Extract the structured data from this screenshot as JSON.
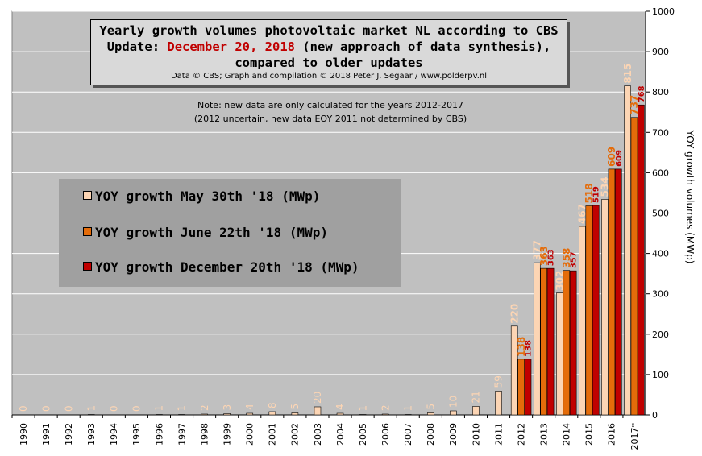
{
  "chart_data": {
    "type": "bar",
    "title_line1": "Yearly growth volumes photovoltaic market NL according to CBS",
    "title_line2_prefix": "Update: ",
    "title_line2_date": "December 20, 2018",
    "title_line2_suffix": " (new approach of data synthesis),",
    "title_line3": "compared to older updates",
    "credit": "Data © CBS; Graph and compilation © 2018 Peter J. Segaar / www.polderpv.nl",
    "note_line1": "Note: new data are only calculated for the years 2012-2017",
    "note_line2": "(2012 uncertain, new data EOY 2011 not determined by CBS)",
    "ylabel": "YOY growth volumes (MWp)",
    "ylim": [
      0,
      1000
    ],
    "yticks": [
      0,
      100,
      200,
      300,
      400,
      500,
      600,
      700,
      800,
      900,
      1000
    ],
    "categories": [
      "1990",
      "1991",
      "1992",
      "1993",
      "1994",
      "1995",
      "1996",
      "1997",
      "1998",
      "1999",
      "2000",
      "2001",
      "2002",
      "2003",
      "2004",
      "2005",
      "2006",
      "2007",
      "2008",
      "2009",
      "2010",
      "2011",
      "2012",
      "2013",
      "2014",
      "2015",
      "2016",
      "2017*"
    ],
    "series": [
      {
        "name": "YOY growth May 30th '18 (MWp)",
        "color": "#fcd5b4",
        "label_color": "#fcd5b4",
        "values": [
          0,
          0,
          0,
          1,
          0,
          0,
          1,
          1,
          2,
          3,
          4,
          8,
          5,
          20,
          4,
          1,
          2,
          1,
          5,
          10,
          21,
          59,
          220,
          377,
          302,
          467,
          534,
          815
        ]
      },
      {
        "name": "YOY growth June 22th '18 (MWp)",
        "color": "#e46c0a",
        "label_color": "#e46c0a",
        "values": [
          null,
          null,
          null,
          null,
          null,
          null,
          null,
          null,
          null,
          null,
          null,
          null,
          null,
          null,
          null,
          null,
          null,
          null,
          null,
          null,
          null,
          null,
          138,
          363,
          358,
          518,
          609,
          737
        ]
      },
      {
        "name": "YOY growth December 20th '18 (MWp)",
        "color": "#c00000",
        "label_color": "#c00000",
        "values": [
          null,
          null,
          null,
          null,
          null,
          null,
          null,
          null,
          null,
          null,
          null,
          null,
          null,
          null,
          null,
          null,
          null,
          null,
          null,
          null,
          null,
          null,
          138,
          363,
          357,
          519,
          609,
          768
        ]
      }
    ],
    "early_labels": [
      "0",
      "0",
      "0",
      "1",
      "0",
      "0",
      "1",
      "1",
      "2",
      "3",
      "4",
      "8",
      "5",
      "20",
      "4",
      "1",
      "2",
      "1",
      "5",
      "10",
      "21",
      "59"
    ],
    "grid": true,
    "legend_position": "left-middle",
    "plot_bg": "#c0c0c0"
  }
}
